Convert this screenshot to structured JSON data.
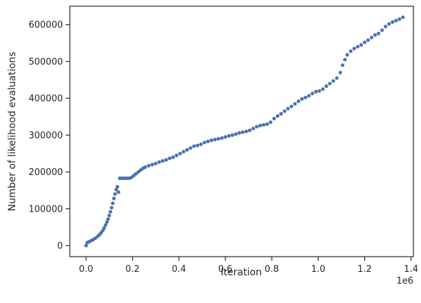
{
  "chart_data": {
    "type": "scatter",
    "xlabel": "Iteration",
    "ylabel": "Number of likelihood evaluations",
    "x_offset_label": "1e6",
    "xlim": [
      -0.07,
      1.41
    ],
    "ylim": [
      -30000,
      650000
    ],
    "grid": false,
    "legend": "none",
    "x_ticks": [
      0.0,
      0.2,
      0.4,
      0.6,
      0.8,
      1.0,
      1.2,
      1.4
    ],
    "x_tick_labels": [
      "0.0",
      "0.2",
      "0.4",
      "0.6",
      "0.8",
      "1.0",
      "1.2",
      "1.4"
    ],
    "y_ticks": [
      0,
      100000,
      200000,
      300000,
      400000,
      500000,
      600000
    ],
    "y_tick_labels": [
      "0",
      "100000",
      "200000",
      "300000",
      "400000",
      "500000",
      "600000"
    ],
    "marker_color": "#4c72b0",
    "x_unit": "1e6",
    "points": {
      "x": [
        0.0,
        0.005,
        0.012,
        0.02,
        0.03,
        0.04,
        0.05,
        0.058,
        0.065,
        0.072,
        0.078,
        0.084,
        0.09,
        0.095,
        0.1,
        0.105,
        0.11,
        0.115,
        0.12,
        0.125,
        0.13,
        0.135,
        0.14,
        0.145,
        0.155,
        0.165,
        0.175,
        0.185,
        0.195,
        0.205,
        0.215,
        0.225,
        0.235,
        0.245,
        0.255,
        0.27,
        0.285,
        0.3,
        0.315,
        0.33,
        0.345,
        0.36,
        0.375,
        0.39,
        0.405,
        0.42,
        0.435,
        0.45,
        0.465,
        0.48,
        0.495,
        0.51,
        0.525,
        0.54,
        0.555,
        0.57,
        0.585,
        0.6,
        0.615,
        0.63,
        0.645,
        0.66,
        0.675,
        0.69,
        0.705,
        0.72,
        0.735,
        0.75,
        0.765,
        0.78,
        0.795,
        0.81,
        0.825,
        0.84,
        0.855,
        0.87,
        0.885,
        0.9,
        0.915,
        0.93,
        0.945,
        0.96,
        0.975,
        0.99,
        1.005,
        1.02,
        1.035,
        1.05,
        1.065,
        1.08,
        1.095,
        1.105,
        1.115,
        1.125,
        1.14,
        1.155,
        1.17,
        1.185,
        1.2,
        1.215,
        1.23,
        1.245,
        1.26,
        1.275,
        1.29,
        1.305,
        1.32,
        1.335,
        1.35,
        1.365
      ],
      "y": [
        0,
        8000,
        10000,
        13000,
        16000,
        20000,
        25000,
        30000,
        35000,
        41000,
        48000,
        56000,
        64000,
        72000,
        82000,
        92000,
        103000,
        115000,
        128000,
        140000,
        152000,
        160000,
        145000,
        183000,
        183000,
        183000,
        183000,
        183000,
        185000,
        190000,
        195000,
        200000,
        205000,
        210000,
        213000,
        217000,
        220000,
        223000,
        227000,
        230000,
        233000,
        237000,
        240000,
        245000,
        250000,
        255000,
        260000,
        265000,
        270000,
        272000,
        275000,
        280000,
        283000,
        286000,
        288000,
        290000,
        292000,
        295000,
        298000,
        300000,
        303000,
        306000,
        308000,
        310000,
        313000,
        318000,
        323000,
        326000,
        328000,
        330000,
        335000,
        345000,
        352000,
        358000,
        365000,
        372000,
        378000,
        385000,
        392000,
        398000,
        402000,
        407000,
        413000,
        418000,
        420000,
        425000,
        433000,
        440000,
        447000,
        455000,
        470000,
        490000,
        505000,
        518000,
        528000,
        535000,
        540000,
        545000,
        552000,
        558000,
        565000,
        572000,
        576000,
        585000,
        595000,
        602000,
        607000,
        611000,
        615000,
        620000
      ]
    }
  }
}
